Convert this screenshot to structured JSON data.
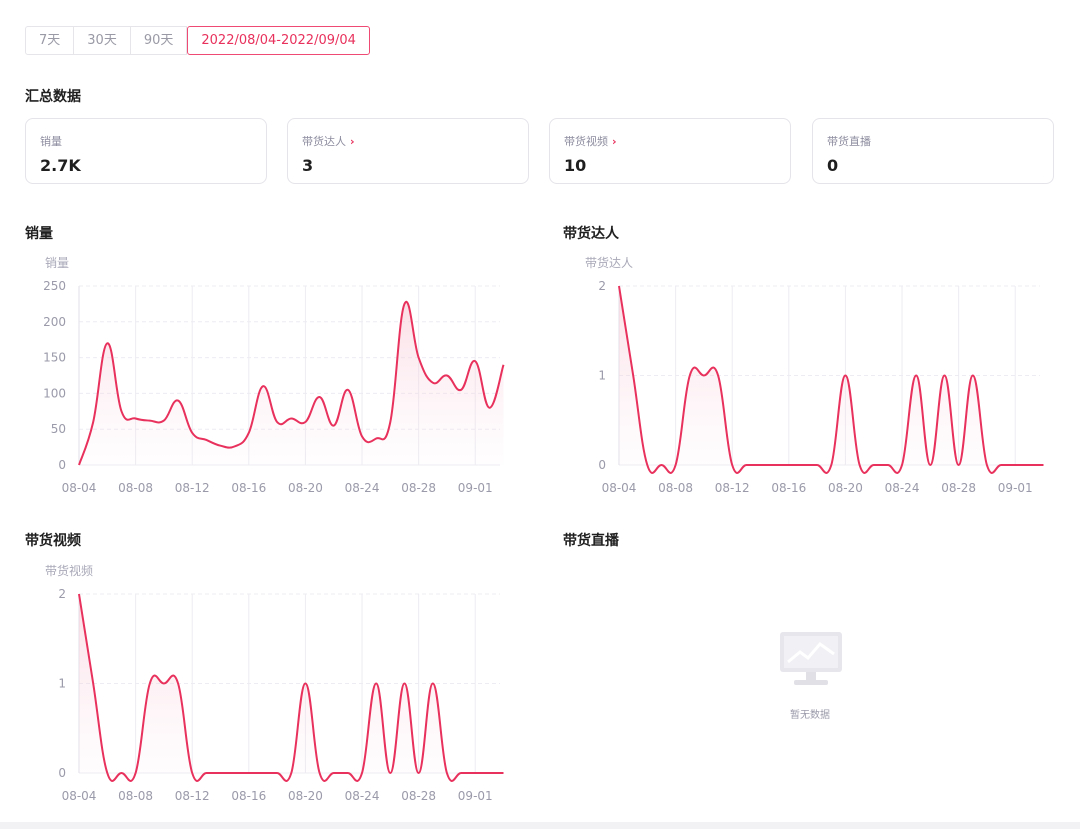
{
  "range_tabs": [
    {
      "label": "7天",
      "active": false
    },
    {
      "label": "30天",
      "active": false
    },
    {
      "label": "90天",
      "active": false
    },
    {
      "label": "2022/08/04-2022/09/04",
      "active": true
    }
  ],
  "summary": {
    "title": "汇总数据",
    "cards": [
      {
        "label": "销量",
        "value": "2.7K",
        "has_link": false
      },
      {
        "label": "带货达人",
        "value": "3",
        "has_link": true
      },
      {
        "label": "带货视频",
        "value": "10",
        "has_link": true
      },
      {
        "label": "带货直播",
        "value": "0",
        "has_link": false
      }
    ]
  },
  "charts": {
    "sales": {
      "title": "销量",
      "unit_label": "销量"
    },
    "influencers": {
      "title": "带货达人",
      "unit_label": "带货达人"
    },
    "videos": {
      "title": "带货视频",
      "unit_label": "带货视频"
    },
    "live": {
      "title": "带货直播",
      "empty_text": "暂无数据"
    }
  },
  "colors": {
    "accent": "#e8315c",
    "grid": "#ececf2",
    "axis_text": "#9a9aaa"
  },
  "chart_data": [
    {
      "type": "area",
      "title": "销量",
      "ylabel": "销量",
      "ylim": [
        0,
        250
      ],
      "yticks": [
        0,
        50,
        100,
        150,
        200,
        250
      ],
      "xticks": [
        "08-04",
        "08-08",
        "08-12",
        "08-16",
        "08-20",
        "08-24",
        "08-28",
        "09-01"
      ],
      "x": [
        "08-04",
        "08-05",
        "08-06",
        "08-07",
        "08-08",
        "08-09",
        "08-10",
        "08-11",
        "08-12",
        "08-13",
        "08-14",
        "08-15",
        "08-16",
        "08-17",
        "08-18",
        "08-19",
        "08-20",
        "08-21",
        "08-22",
        "08-23",
        "08-24",
        "08-25",
        "08-26",
        "08-27",
        "08-28",
        "08-29",
        "08-30",
        "08-31",
        "09-01",
        "09-02",
        "09-03"
      ],
      "values": [
        0,
        60,
        170,
        75,
        65,
        62,
        62,
        90,
        45,
        35,
        27,
        26,
        45,
        110,
        60,
        65,
        60,
        95,
        55,
        105,
        40,
        37,
        60,
        225,
        150,
        115,
        125,
        105,
        145,
        80,
        140
      ]
    },
    {
      "type": "area",
      "title": "带货达人",
      "ylabel": "带货达人",
      "ylim": [
        0,
        2
      ],
      "yticks": [
        0,
        1,
        2
      ],
      "xticks": [
        "08-04",
        "08-08",
        "08-12",
        "08-16",
        "08-20",
        "08-24",
        "08-28",
        "09-01"
      ],
      "x": [
        "08-04",
        "08-05",
        "08-06",
        "08-07",
        "08-08",
        "08-09",
        "08-10",
        "08-11",
        "08-12",
        "08-13",
        "08-14",
        "08-15",
        "08-16",
        "08-17",
        "08-18",
        "08-19",
        "08-20",
        "08-21",
        "08-22",
        "08-23",
        "08-24",
        "08-25",
        "08-26",
        "08-27",
        "08-28",
        "08-29",
        "08-30",
        "08-31",
        "09-01",
        "09-02",
        "09-03"
      ],
      "values": [
        2,
        1,
        0,
        0,
        0,
        1,
        1,
        1,
        0,
        0,
        0,
        0,
        0,
        0,
        0,
        0,
        1,
        0,
        0,
        0,
        0,
        1,
        0,
        1,
        0,
        1,
        0,
        0,
        0,
        0,
        0
      ]
    },
    {
      "type": "area",
      "title": "带货视频",
      "ylabel": "带货视频",
      "ylim": [
        0,
        2
      ],
      "yticks": [
        0,
        1,
        2
      ],
      "xticks": [
        "08-04",
        "08-08",
        "08-12",
        "08-16",
        "08-20",
        "08-24",
        "08-28",
        "09-01"
      ],
      "x": [
        "08-04",
        "08-05",
        "08-06",
        "08-07",
        "08-08",
        "08-09",
        "08-10",
        "08-11",
        "08-12",
        "08-13",
        "08-14",
        "08-15",
        "08-16",
        "08-17",
        "08-18",
        "08-19",
        "08-20",
        "08-21",
        "08-22",
        "08-23",
        "08-24",
        "08-25",
        "08-26",
        "08-27",
        "08-28",
        "08-29",
        "08-30",
        "08-31",
        "09-01",
        "09-02",
        "09-03"
      ],
      "values": [
        2,
        1,
        0,
        0,
        0,
        1,
        1,
        1,
        0,
        0,
        0,
        0,
        0,
        0,
        0,
        0,
        1,
        0,
        0,
        0,
        0,
        1,
        0,
        1,
        0,
        1,
        0,
        0,
        0,
        0,
        0
      ]
    }
  ]
}
